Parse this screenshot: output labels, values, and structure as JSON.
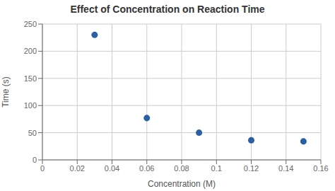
{
  "chart_data": {
    "type": "scatter",
    "title": "Effect of Concentration on Reaction Time",
    "xlabel": "Concentration (M)",
    "ylabel": "Time (s)",
    "x": [
      0.03,
      0.06,
      0.09,
      0.12,
      0.15
    ],
    "values": [
      230,
      77,
      50,
      36,
      34
    ],
    "color": "#2A5FA5",
    "xlim": [
      0,
      0.16
    ],
    "ylim": [
      0,
      250
    ],
    "xticks": [
      0,
      0.02,
      0.04,
      0.06,
      0.08,
      0.1,
      0.12,
      0.14,
      0.16
    ],
    "yticks": [
      0,
      50,
      100,
      150,
      200,
      250
    ],
    "grid": true
  }
}
